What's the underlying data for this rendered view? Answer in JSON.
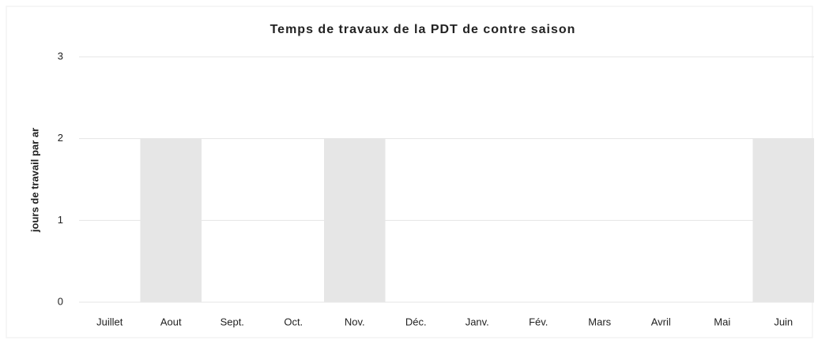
{
  "chart_data": {
    "type": "bar",
    "title": "Temps de travaux de la PDT de contre saison",
    "y_label": "jours de travail par ar",
    "categories": [
      "Juillet",
      "Aout",
      "Sept.",
      "Oct.",
      "Nov.",
      "Déc.",
      "Janv.",
      "Fév.",
      "Mars",
      "Avril",
      "Mai",
      "Juin"
    ],
    "values": [
      0,
      2,
      0,
      0,
      2,
      0,
      0,
      0,
      0,
      0,
      0,
      2
    ],
    "color": "#e6e6e6",
    "ylim": [
      0,
      3
    ],
    "yticks": [
      0,
      1,
      2,
      3
    ],
    "grid": true
  }
}
